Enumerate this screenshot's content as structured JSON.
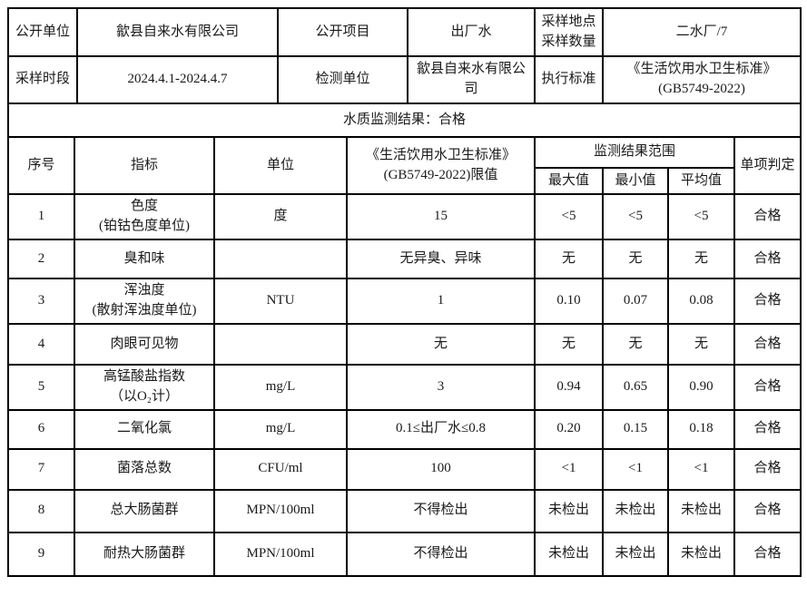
{
  "colors": {
    "text": "#1a1a1a",
    "border": "#000000",
    "background": "#ffffff"
  },
  "document": {
    "info": {
      "public_unit_label": "公开单位",
      "public_unit_value": "歙县自来水有限公司",
      "public_item_label": "公开项目",
      "public_item_value": "出厂水",
      "sampling_site_label_line1": "采样地点",
      "sampling_site_label_line2": "采样数量",
      "sampling_site_value": "二水厂/7",
      "sampling_period_label": "采样时段",
      "sampling_period_value": "2024.4.1-2024.4.7",
      "testing_unit_label": "检测单位",
      "testing_unit_value": "歙县自来水有限公司",
      "standard_label": "执行标准",
      "standard_value_line1": "《生活饮用水卫生标准》",
      "standard_value_line2": "(GB5749-2022)"
    },
    "banner": "水质监测结果：合格",
    "table": {
      "headers": {
        "no": "序号",
        "indicator": "指标",
        "unit": "单位",
        "limit_line1": "《生活饮用水卫生标准》",
        "limit_line2": "(GB5749-2022)限值",
        "range_group": "监测结果范围",
        "max": "最大值",
        "min": "最小值",
        "avg": "平均值",
        "judgment": "单项判定"
      },
      "rows": [
        {
          "no": "1",
          "indicator": "色度",
          "indicator2": "(铂钴色度单位)",
          "unit": "度",
          "limit": "15",
          "max": "<5",
          "min": "<5",
          "avg": "<5",
          "judgment": "合格"
        },
        {
          "no": "2",
          "indicator": "臭和味",
          "indicator2": "",
          "unit": "",
          "limit": "无异臭、异味",
          "max": "无",
          "min": "无",
          "avg": "无",
          "judgment": "合格"
        },
        {
          "no": "3",
          "indicator": "浑浊度",
          "indicator2": "(散射浑浊度单位)",
          "unit": "NTU",
          "limit": "1",
          "max": "0.10",
          "min": "0.07",
          "avg": "0.08",
          "judgment": "合格"
        },
        {
          "no": "4",
          "indicator": "肉眼可见物",
          "indicator2": "",
          "unit": "",
          "limit": "无",
          "max": "无",
          "min": "无",
          "avg": "无",
          "judgment": "合格"
        },
        {
          "no": "5",
          "indicator": "高锰酸盐指数",
          "indicator2": "（以O₂计）",
          "unit": "mg/L",
          "limit": "3",
          "max": "0.94",
          "min": "0.65",
          "avg": "0.90",
          "judgment": "合格"
        },
        {
          "no": "6",
          "indicator": "二氧化氯",
          "indicator2": "",
          "unit": "mg/L",
          "limit": "0.1≤出厂水≤0.8",
          "max": "0.20",
          "min": "0.15",
          "avg": "0.18",
          "judgment": "合格"
        },
        {
          "no": "7",
          "indicator": "菌落总数",
          "indicator2": "",
          "unit": "CFU/ml",
          "limit": "100",
          "max": "<1",
          "min": "<1",
          "avg": "<1",
          "judgment": "合格"
        },
        {
          "no": "8",
          "indicator": "总大肠菌群",
          "indicator2": "",
          "unit": "MPN/100ml",
          "limit": "不得检出",
          "max": "未检出",
          "min": "未检出",
          "avg": "未检出",
          "judgment": "合格"
        },
        {
          "no": "9",
          "indicator": "耐热大肠菌群",
          "indicator2": "",
          "unit": "MPN/100ml",
          "limit": "不得检出",
          "max": "未检出",
          "min": "未检出",
          "avg": "未检出",
          "judgment": "合格"
        }
      ]
    }
  }
}
